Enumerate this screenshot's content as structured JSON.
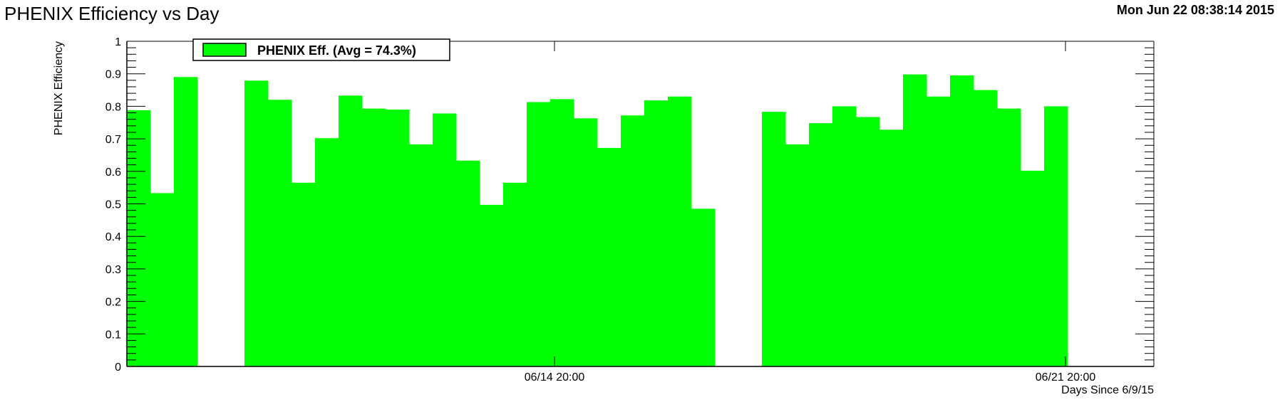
{
  "header": {
    "title": "PHENIX Efficiency vs Day",
    "timestamp": "Mon Jun 22 08:38:14 2015"
  },
  "colors": {
    "bar_fill": "#00ff00",
    "axis": "#000000",
    "background": "#ffffff"
  },
  "chart_data": {
    "type": "bar",
    "ylabel": "PHENIX Efficiency",
    "xlabel": "Days Since 6/9/15",
    "ylim": [
      0,
      1
    ],
    "yticks": [
      "0",
      "0.1",
      "0.2",
      "0.3",
      "0.4",
      "0.5",
      "0.6",
      "0.7",
      "0.8",
      "0.9",
      "1"
    ],
    "xticks": [
      "06/14 20:00",
      "06/21 20:00"
    ],
    "legend": {
      "label": "PHENIX Eff. (Avg =  74.3%)",
      "placement": "top-left"
    },
    "grid": false,
    "series": [
      {
        "name": "PHENIX Eff.",
        "color": "#00ff00",
        "values": [
          0.788,
          0.533,
          0.89,
          null,
          null,
          0.879,
          0.82,
          0.565,
          0.702,
          0.833,
          0.793,
          0.79,
          0.683,
          0.778,
          0.633,
          0.497,
          0.565,
          0.813,
          0.822,
          0.763,
          0.672,
          0.772,
          0.818,
          0.83,
          0.485,
          null,
          null,
          0.783,
          0.683,
          0.748,
          0.8,
          0.767,
          0.728,
          0.898,
          0.83,
          0.895,
          0.85,
          0.793,
          0.602,
          0.8
        ]
      }
    ]
  }
}
